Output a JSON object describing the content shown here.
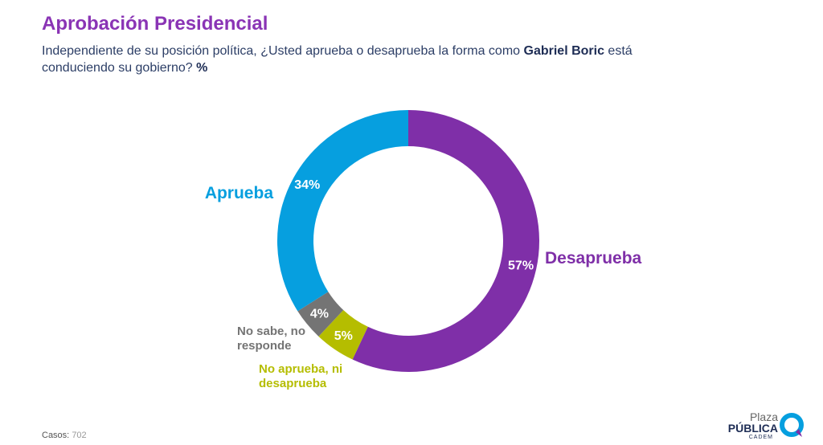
{
  "header": {
    "title": "Aprobación Presidencial",
    "subtitle": [
      "Independiente de su posición política, ¿Usted aprueba o desaprueba la forma como ",
      "Gabriel Boric",
      " está conduciendo su gobierno? ",
      "%"
    ]
  },
  "chart_data": {
    "type": "donut",
    "categories": [
      "Desaprueba",
      "No aprueba, ni desaprueba",
      "No sabe, no responde",
      "Aprueba"
    ],
    "values": [
      57,
      5,
      4,
      34
    ],
    "value_labels": [
      "57%",
      "5%",
      "4%",
      "34%"
    ],
    "colors": [
      "#7f2fa8",
      "#b5bd00",
      "#747474",
      "#069fdf"
    ]
  },
  "footer": {
    "label": "Casos:",
    "value": "702"
  },
  "logo": {
    "line1": "Plaza",
    "line2": "PÚBLICA",
    "line3": "CADEM"
  }
}
